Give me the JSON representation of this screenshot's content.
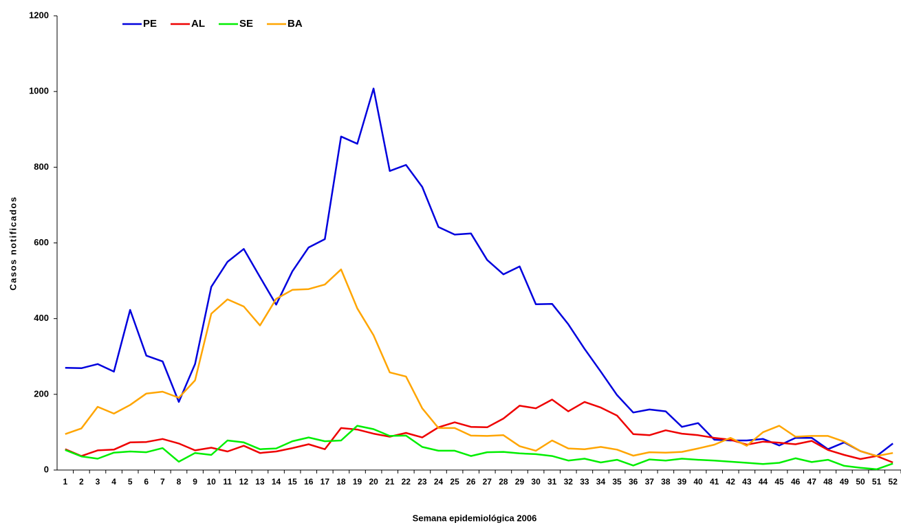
{
  "chart_data": {
    "type": "line",
    "x_label": "Semana epidemiológica 2006",
    "y_label": "Casos notificados",
    "categories": [
      1,
      2,
      3,
      4,
      5,
      6,
      7,
      8,
      9,
      10,
      11,
      12,
      13,
      14,
      15,
      16,
      17,
      18,
      19,
      20,
      21,
      22,
      23,
      24,
      25,
      26,
      27,
      28,
      29,
      30,
      31,
      32,
      33,
      34,
      35,
      36,
      37,
      38,
      39,
      40,
      41,
      42,
      43,
      44,
      45,
      46,
      47,
      48,
      49,
      50,
      51,
      52
    ],
    "series": [
      {
        "name": "PE",
        "color": "#0000dd",
        "values": [
          270,
          269,
          280,
          260,
          423,
          302,
          287,
          180,
          280,
          484,
          550,
          584,
          510,
          437,
          525,
          588,
          610,
          881,
          862,
          1008,
          790,
          806,
          748,
          642,
          622,
          625,
          555,
          517,
          538,
          438,
          439,
          385,
          320,
          260,
          198,
          152,
          160,
          155,
          114,
          124,
          80,
          78,
          78,
          82,
          65,
          85,
          85,
          55,
          73,
          50,
          37,
          70
        ]
      },
      {
        "name": "AL",
        "color": "#ee0000",
        "values": [
          55,
          37,
          52,
          54,
          73,
          74,
          82,
          70,
          52,
          59,
          49,
          64,
          45,
          49,
          58,
          68,
          55,
          111,
          107,
          96,
          88,
          98,
          86,
          113,
          126,
          114,
          113,
          136,
          170,
          163,
          186,
          155,
          180,
          165,
          144,
          95,
          92,
          105,
          96,
          92,
          85,
          80,
          67,
          75,
          72,
          68,
          77,
          53,
          40,
          29,
          37,
          20
        ]
      },
      {
        "name": "SE",
        "color": "#00ee00",
        "values": [
          53,
          36,
          30,
          46,
          49,
          47,
          58,
          22,
          45,
          40,
          78,
          73,
          55,
          57,
          76,
          86,
          76,
          78,
          117,
          108,
          90,
          91,
          61,
          51,
          51,
          37,
          47,
          48,
          44,
          42,
          37,
          25,
          30,
          20,
          27,
          12,
          28,
          25,
          30,
          27,
          25,
          22,
          19,
          16,
          19,
          31,
          21,
          27,
          11,
          6,
          2,
          17
        ]
      },
      {
        "name": "BA",
        "color": "#ffa500",
        "values": [
          95,
          110,
          167,
          149,
          172,
          202,
          207,
          191,
          237,
          413,
          451,
          432,
          382,
          452,
          476,
          478,
          490,
          530,
          427,
          356,
          258,
          247,
          163,
          111,
          111,
          91,
          90,
          92,
          63,
          51,
          78,
          57,
          55,
          61,
          54,
          38,
          47,
          46,
          48,
          57,
          67,
          85,
          64,
          100,
          117,
          88,
          90,
          90,
          75,
          50,
          37,
          45
        ]
      }
    ],
    "ylim": [
      0,
      1200
    ],
    "yticks": [
      0,
      200,
      400,
      600,
      800,
      1000,
      1200
    ],
    "grid": false,
    "legend": "top-left"
  }
}
